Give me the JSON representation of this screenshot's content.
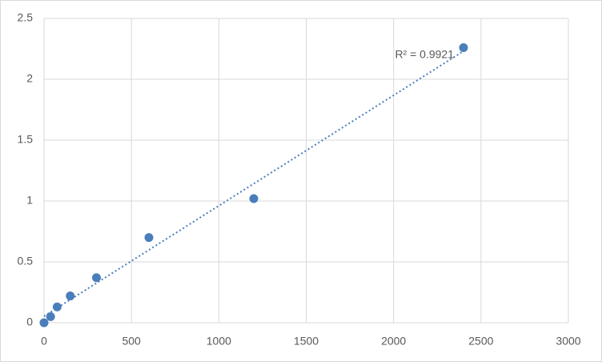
{
  "chart_data": {
    "type": "scatter",
    "x": [
      0,
      37.5,
      75,
      150,
      300,
      600,
      1200,
      2400
    ],
    "series": [
      {
        "color": "#4a7ebb",
        "values": [
          0,
          0.05,
          0.13,
          0.22,
          0.37,
          0.7,
          1.02,
          2.26
        ]
      }
    ],
    "xlim": [
      0,
      3000
    ],
    "xticks": [
      0,
      500,
      1000,
      1500,
      2000,
      2500,
      3000
    ],
    "ylim": [
      0,
      2.5
    ],
    "yticks": [
      0,
      0.5,
      1,
      1.5,
      2,
      2.5
    ],
    "grid": true,
    "trendline": {
      "type": "linear",
      "label": "R² = 0.9921"
    }
  }
}
